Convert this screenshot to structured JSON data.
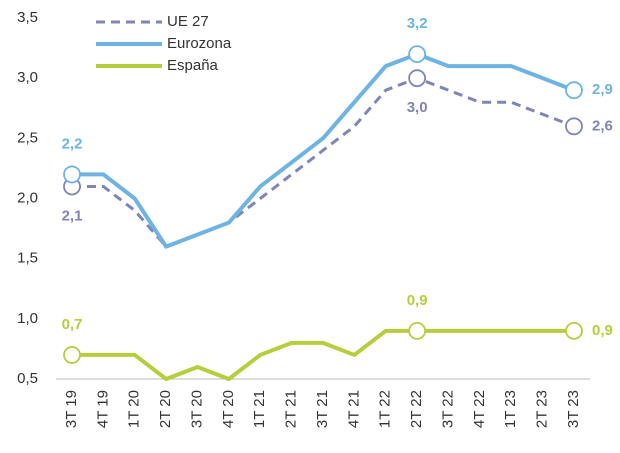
{
  "chart_data": {
    "type": "line",
    "categories": [
      "3T 19",
      "4T 19",
      "1T 20",
      "2T 20",
      "3T 20",
      "4T 20",
      "1T 21",
      "2T 21",
      "3T 21",
      "4T 21",
      "1T 22",
      "2T 22",
      "3T 22",
      "4T 22",
      "1T 23",
      "2T 23",
      "3T 23"
    ],
    "series": [
      {
        "name": "UE 27",
        "color": "#7f85b6",
        "linestyle": "dashed",
        "values": [
          2.1,
          2.1,
          1.9,
          1.6,
          1.7,
          1.8,
          2.0,
          2.2,
          2.4,
          2.6,
          2.9,
          3.0,
          2.9,
          2.8,
          2.8,
          2.7,
          2.6
        ],
        "value_labels": [
          "2,1",
          null,
          null,
          null,
          null,
          null,
          null,
          null,
          null,
          null,
          null,
          "3,0",
          null,
          null,
          null,
          null,
          "2,6"
        ]
      },
      {
        "name": "Eurozona",
        "color": "#6db4e3",
        "linestyle": "solid",
        "values": [
          2.2,
          2.2,
          2.0,
          1.6,
          1.7,
          1.8,
          2.1,
          2.3,
          2.5,
          2.8,
          3.1,
          3.2,
          3.1,
          3.1,
          3.1,
          3.0,
          2.9
        ],
        "value_labels": [
          "2,2",
          null,
          null,
          null,
          null,
          null,
          null,
          null,
          null,
          null,
          null,
          "3,2",
          null,
          null,
          null,
          null,
          "2,9"
        ]
      },
      {
        "name": "España",
        "color": "#b6cd3c",
        "linestyle": "solid",
        "values": [
          0.7,
          0.7,
          0.7,
          0.5,
          0.6,
          0.5,
          0.7,
          0.8,
          0.8,
          0.7,
          0.9,
          0.9,
          0.9,
          0.9,
          0.9,
          0.9,
          0.9
        ],
        "value_labels": [
          "0,7",
          null,
          null,
          null,
          null,
          null,
          null,
          null,
          null,
          null,
          null,
          "0,9",
          null,
          null,
          null,
          null,
          "0,9"
        ]
      }
    ],
    "ylim": [
      0.5,
      3.5
    ],
    "yticks": [
      {
        "value": 0.5,
        "label": "0,5"
      },
      {
        "value": 1.0,
        "label": "1,0"
      },
      {
        "value": 1.5,
        "label": "1,5"
      },
      {
        "value": 2.0,
        "label": "2,0"
      },
      {
        "value": 2.5,
        "label": "2,5"
      },
      {
        "value": 3.0,
        "label": "3,0"
      },
      {
        "value": 3.5,
        "label": "3,5"
      }
    ],
    "grid": false,
    "legend": "upper-left"
  }
}
